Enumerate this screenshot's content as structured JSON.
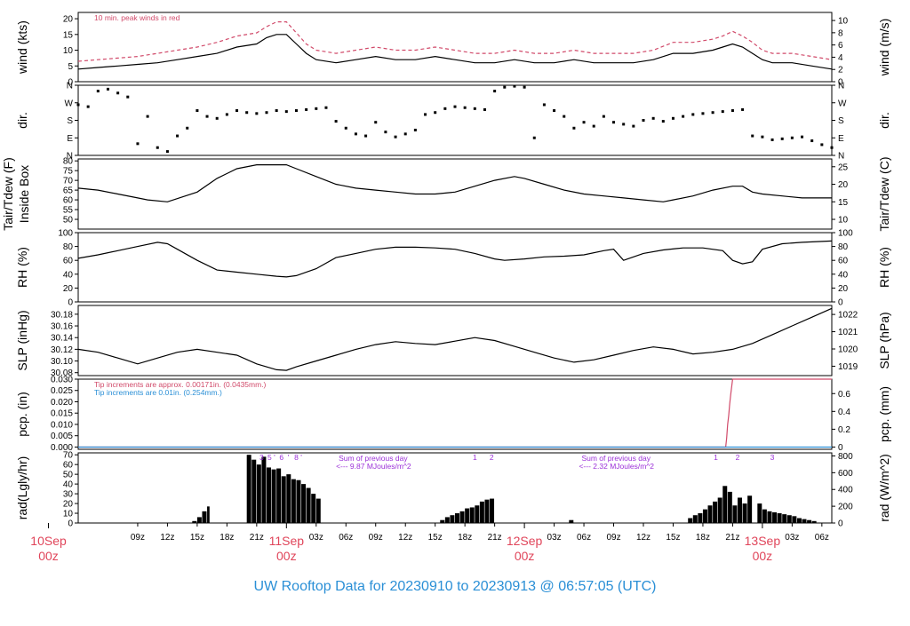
{
  "footer": {
    "title": "UW Rooftop Data for 20230910  to  20230913 @ 06:57:05  (UTC)"
  },
  "colors": {
    "trace": "#000000",
    "peak": "#d14a6a",
    "tip_small": "#d14a6a",
    "tip_large": "#2a8fd6",
    "rad_annot": "#9b30d8",
    "day_label": "#e0455a",
    "title": "#2a8fd6",
    "frame": "#000000"
  },
  "time_axis": {
    "start_hour": 3,
    "end_hour": 79,
    "tick_hours": [
      9,
      12,
      15,
      18,
      21,
      27,
      30,
      33,
      36,
      39,
      42,
      45,
      51,
      54,
      57,
      60,
      63,
      66,
      69,
      75,
      78
    ],
    "tick_labels": [
      "09z",
      "12z",
      "15z",
      "18z",
      "21z",
      "03z",
      "06z",
      "09z",
      "12z",
      "15z",
      "18z",
      "21z",
      "03z",
      "06z",
      "09z",
      "12z",
      "15z",
      "18z",
      "21z",
      "03z",
      "06z"
    ],
    "day_marks": [
      {
        "hour": 0,
        "day": "10Sep",
        "sub": "00z"
      },
      {
        "hour": 24,
        "day": "11Sep",
        "sub": "00z"
      },
      {
        "hour": 48,
        "day": "12Sep",
        "sub": "00z"
      },
      {
        "hour": 72,
        "day": "13Sep",
        "sub": "00z"
      }
    ]
  },
  "chart_data": [
    {
      "id": "wind",
      "type": "line",
      "ylabel": "wind (kts)",
      "ylabel_right": "wind (m/s)",
      "ylim": [
        0,
        22
      ],
      "yticks": [
        0,
        5,
        10,
        15,
        20
      ],
      "yticks_right_values": [
        0,
        2,
        4,
        6,
        8,
        10
      ],
      "annotation": "10 min. peak winds in red",
      "series": [
        {
          "key": "wind_speed",
          "x": [
            3,
            5,
            7,
            9,
            11,
            13,
            15,
            17,
            19,
            21,
            22,
            23,
            24,
            25,
            26,
            27,
            29,
            31,
            33,
            35,
            37,
            39,
            41,
            43,
            45,
            47,
            49,
            51,
            53,
            55,
            57,
            59,
            61,
            63,
            65,
            67,
            68,
            69,
            70,
            71,
            72,
            73,
            75,
            77,
            79
          ],
          "y": [
            4,
            4.5,
            5,
            5.5,
            6,
            7,
            8,
            9,
            11,
            12,
            14,
            15,
            15,
            12,
            9,
            7,
            6,
            7,
            8,
            7,
            7,
            8,
            7,
            6,
            6,
            7,
            6,
            6,
            7,
            6,
            6,
            6,
            7,
            9,
            9,
            10,
            11,
            12,
            11,
            9,
            7,
            6,
            6,
            5,
            4
          ]
        },
        {
          "key": "peak_wind",
          "x": [
            3,
            5,
            7,
            9,
            11,
            13,
            15,
            17,
            19,
            21,
            22,
            23,
            24,
            25,
            26,
            27,
            29,
            31,
            33,
            35,
            37,
            39,
            41,
            43,
            45,
            47,
            49,
            51,
            53,
            55,
            57,
            59,
            61,
            63,
            65,
            67,
            68,
            69,
            70,
            71,
            72,
            73,
            75,
            77,
            79
          ],
          "y": [
            6.5,
            7,
            7.5,
            8,
            9,
            10,
            11,
            12.5,
            14.5,
            15.5,
            17.5,
            19,
            19,
            15.5,
            12,
            10,
            9,
            10,
            11,
            10,
            10,
            11,
            10,
            9,
            9,
            10,
            9,
            9,
            10,
            9,
            9,
            9,
            10,
            12.5,
            12.5,
            13.5,
            14.5,
            16,
            14.5,
            12.5,
            10,
            9,
            9,
            8,
            7
          ]
        }
      ]
    },
    {
      "id": "dir",
      "type": "scatter",
      "ylabel": "dir.",
      "ylabel_right": "dir.",
      "ylim": [
        0,
        360
      ],
      "yticks": [
        0,
        90,
        180,
        270,
        360
      ],
      "ytick_labels": [
        "N",
        "E",
        "S",
        "W",
        "N"
      ],
      "series": [
        {
          "key": "direction",
          "x": [
            3,
            4,
            5,
            6,
            7,
            8,
            9,
            10,
            11,
            12,
            13,
            14,
            15,
            16,
            17,
            18,
            19,
            20,
            21,
            22,
            23,
            24,
            25,
            26,
            27,
            28,
            29,
            30,
            31,
            32,
            33,
            34,
            35,
            36,
            37,
            38,
            39,
            40,
            41,
            42,
            43,
            44,
            45,
            46,
            47,
            48,
            49,
            50,
            51,
            52,
            53,
            54,
            55,
            56,
            57,
            58,
            59,
            60,
            61,
            62,
            63,
            64,
            65,
            66,
            67,
            68,
            69,
            70,
            71,
            72,
            73,
            74,
            75,
            76,
            77,
            78,
            79
          ],
          "y": [
            260,
            250,
            330,
            340,
            320,
            300,
            60,
            200,
            40,
            20,
            100,
            140,
            230,
            200,
            190,
            210,
            230,
            220,
            215,
            220,
            230,
            225,
            230,
            235,
            240,
            245,
            175,
            140,
            110,
            100,
            170,
            120,
            95,
            110,
            130,
            210,
            220,
            240,
            250,
            245,
            240,
            235,
            330,
            350,
            355,
            350,
            90,
            260,
            230,
            200,
            140,
            170,
            150,
            200,
            170,
            160,
            150,
            180,
            190,
            175,
            190,
            200,
            210,
            215,
            220,
            225,
            230,
            235,
            100,
            95,
            80,
            85,
            90,
            95,
            75,
            55,
            40
          ]
        }
      ]
    },
    {
      "id": "temp",
      "type": "line",
      "ylabel": "Tair/Tdew (F)",
      "ylabel2": "Inside Box",
      "ylabel_right": "Tair/Tdew (C)",
      "ylim": [
        45,
        81
      ],
      "yticks": [
        50,
        55,
        60,
        65,
        70,
        75,
        80
      ],
      "yticks_right_values": [
        10,
        15,
        20,
        25
      ],
      "series": [
        {
          "key": "t_inside",
          "x": [
            3,
            5,
            7,
            9,
            10,
            12,
            15,
            17,
            19,
            21,
            22,
            24,
            25,
            27,
            29,
            31,
            33,
            35,
            37,
            39,
            41,
            43,
            45,
            47,
            48,
            50,
            52,
            54,
            56,
            58,
            60,
            62,
            63,
            65,
            67,
            69,
            70,
            71,
            72,
            74,
            76,
            79
          ],
          "y": [
            66,
            65,
            63,
            61,
            60,
            59,
            64,
            71,
            76,
            78,
            78,
            78,
            76,
            72,
            68,
            66,
            65,
            64,
            63,
            63,
            64,
            67,
            70,
            72,
            71,
            68,
            65,
            63,
            62,
            61,
            60,
            59,
            60,
            62,
            65,
            67,
            67,
            64,
            63,
            62,
            61,
            61
          ]
        }
      ]
    },
    {
      "id": "rh",
      "type": "line",
      "ylabel": "RH (%)",
      "ylabel_right": "RH (%)",
      "ylim": [
        0,
        100
      ],
      "yticks": [
        0,
        20,
        40,
        60,
        80,
        100
      ],
      "series": [
        {
          "key": "rh",
          "x": [
            3,
            5,
            7,
            9,
            11,
            12,
            13,
            15,
            17,
            19,
            21,
            23,
            24,
            25,
            27,
            29,
            31,
            33,
            35,
            37,
            39,
            41,
            43,
            45,
            46,
            48,
            50,
            52,
            54,
            56,
            57,
            58,
            60,
            62,
            64,
            66,
            68,
            69,
            70,
            71,
            72,
            74,
            76,
            79
          ],
          "y": [
            63,
            68,
            74,
            80,
            86,
            84,
            76,
            60,
            46,
            43,
            40,
            37,
            36,
            38,
            48,
            64,
            70,
            76,
            79,
            79,
            78,
            76,
            70,
            62,
            60,
            62,
            65,
            66,
            68,
            74,
            76,
            60,
            70,
            75,
            78,
            78,
            74,
            60,
            55,
            58,
            76,
            84,
            86,
            88
          ]
        }
      ]
    },
    {
      "id": "slp",
      "type": "line",
      "ylabel": "SLP (inHg)",
      "ylabel_right": "SLP (hPa)",
      "ylim": [
        30.075,
        30.195
      ],
      "yticks": [
        30.08,
        30.1,
        30.12,
        30.14,
        30.16,
        30.18
      ],
      "ytick_labels": [
        "30.08",
        "30.10",
        "30.12",
        "30.14",
        "30.16",
        "30.18"
      ],
      "yticks_right_values": [
        1019,
        1020,
        1021,
        1022
      ],
      "series": [
        {
          "key": "slp",
          "x": [
            3,
            5,
            7,
            9,
            11,
            13,
            15,
            17,
            19,
            21,
            23,
            24,
            25,
            27,
            29,
            31,
            33,
            35,
            37,
            39,
            41,
            43,
            45,
            47,
            49,
            51,
            53,
            55,
            57,
            59,
            61,
            63,
            65,
            67,
            69,
            71,
            73,
            75,
            77,
            79
          ],
          "y": [
            30.12,
            30.115,
            30.105,
            30.095,
            30.105,
            30.115,
            30.12,
            30.115,
            30.11,
            30.095,
            30.085,
            30.084,
            30.09,
            30.1,
            30.11,
            30.12,
            30.128,
            30.133,
            30.13,
            30.128,
            30.134,
            30.14,
            30.135,
            30.125,
            30.115,
            30.105,
            30.098,
            30.102,
            30.11,
            30.118,
            30.124,
            30.12,
            30.112,
            30.115,
            30.12,
            30.13,
            30.145,
            30.16,
            30.175,
            30.19
          ]
        }
      ]
    },
    {
      "id": "pcp",
      "type": "line",
      "ylabel": "pcp. (in)",
      "ylabel_right": "pcp. (mm)",
      "ylim": [
        -0.001,
        0.03
      ],
      "yticks": [
        0,
        0.005,
        0.01,
        0.015,
        0.02,
        0.025,
        0.03
      ],
      "ytick_labels": [
        "0.000",
        "0.005",
        "0.010",
        "0.015",
        "0.020",
        "0.025",
        "0.030"
      ],
      "yticks_right_values": [
        0,
        0.2,
        0.4,
        0.6
      ],
      "yticks_right_labels": [
        "0",
        "0.2",
        "0.4",
        "0.6"
      ],
      "annotation1": "Tip increments are approx. 0.00171in. (0.0435mm.)",
      "annotation2": "Tip increments are 0.01in. (0.254mm.)",
      "series": [
        {
          "key": "pcp_small",
          "x": [
            3,
            68.3,
            68.4,
            68.5,
            68.6,
            68.7,
            68.8,
            69,
            79
          ],
          "y": [
            0,
            0,
            0.004,
            0.01,
            0.014,
            0.019,
            0.023,
            0.03,
            0.03
          ]
        },
        {
          "key": "pcp_large",
          "x": [
            3,
            79
          ],
          "y": [
            0,
            0
          ]
        }
      ]
    },
    {
      "id": "rad",
      "type": "bar",
      "ylabel": "rad(Lgly/hr)",
      "ylabel_right": "rad (W/m^2)",
      "ylim": [
        0,
        72
      ],
      "yticks": [
        0,
        10,
        20,
        30,
        40,
        50,
        60,
        70
      ],
      "yticks_right_values": [
        0,
        200,
        400,
        600,
        800
      ],
      "annot_left": [
        "Sum of previous day",
        "<--- 9.87 MJoules/m^2"
      ],
      "annot_right": [
        "Sum of previous day",
        "<--- 2.32 MJoules/m^2"
      ],
      "annot_left_x": 29,
      "annot_right_x": 53.5,
      "markers": [
        {
          "hour": 21.5,
          "label": "3"
        },
        {
          "hour": 22.3,
          "label": "5"
        },
        {
          "hour": 22.8,
          "label": "'"
        },
        {
          "hour": 23.5,
          "label": "6"
        },
        {
          "hour": 24.2,
          "label": "'"
        },
        {
          "hour": 25,
          "label": "8"
        },
        {
          "hour": 25.5,
          "label": "'"
        },
        {
          "hour": 43,
          "label": "1"
        },
        {
          "hour": 44.7,
          "label": "2"
        },
        {
          "hour": 67.3,
          "label": "1"
        },
        {
          "hour": 69.5,
          "label": "2"
        },
        {
          "hour": 73,
          "label": "3"
        }
      ],
      "series": [
        {
          "key": "radiation",
          "x": [
            13.5,
            14.5,
            15,
            15.5,
            16,
            16.3,
            19.7,
            20,
            20.5,
            21,
            21.5,
            22,
            22.5,
            23,
            23.5,
            24,
            24.5,
            25,
            25.5,
            26,
            26.5,
            27,
            27.5,
            38.5,
            39.5,
            40,
            40.5,
            41,
            41.5,
            42,
            42.5,
            43,
            43.5,
            44,
            44.5,
            45,
            52,
            52.5,
            53,
            64,
            64.5,
            65,
            65.5,
            66,
            66.5,
            67,
            67.5,
            68,
            68.5,
            69,
            69.5,
            70,
            70.5,
            71,
            71.5,
            72,
            72.5,
            73,
            73.5,
            74,
            74.5,
            75,
            75.5,
            76,
            76.5,
            77,
            77.5
          ],
          "y": [
            0,
            2,
            6,
            12,
            17,
            20,
            0,
            70,
            65,
            60,
            68,
            57,
            55,
            56,
            48,
            50,
            45,
            44,
            40,
            36,
            30,
            25,
            0,
            0,
            3,
            6,
            8,
            10,
            12,
            15,
            16,
            18,
            22,
            24,
            25,
            26,
            0,
            3,
            1,
            0,
            5,
            8,
            10,
            14,
            18,
            22,
            26,
            38,
            32,
            18,
            26,
            20,
            28,
            0,
            20,
            14,
            12,
            11,
            10,
            9,
            8,
            7,
            5,
            4,
            3,
            2,
            1
          ]
        }
      ]
    }
  ]
}
